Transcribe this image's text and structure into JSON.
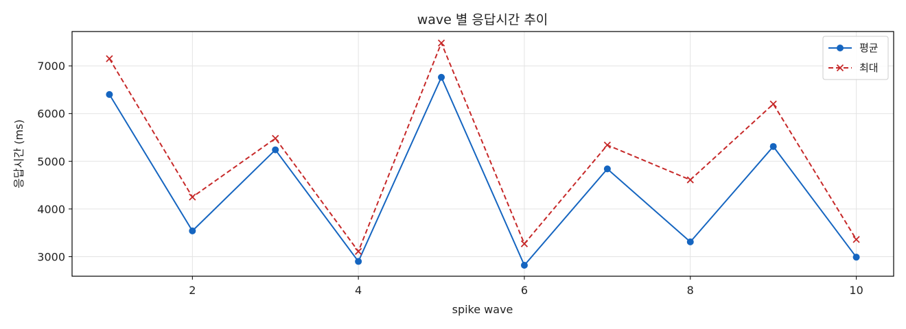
{
  "chart_data": {
    "type": "line",
    "title": "wave 별 응답시간 추이",
    "xlabel": "spike wave",
    "ylabel": "응답시간 (ms)",
    "x": [
      1,
      2,
      3,
      4,
      5,
      6,
      7,
      8,
      9,
      10
    ],
    "xlim": [
      0.55,
      10.45
    ],
    "ylim": [
      2590,
      7720
    ],
    "xticks": [
      2,
      4,
      6,
      8,
      10
    ],
    "yticks": [
      3000,
      4000,
      5000,
      6000,
      7000
    ],
    "grid": true,
    "legend_position": "top-right",
    "series": [
      {
        "name": "평균",
        "values": [
          6400,
          3540,
          5240,
          2900,
          6760,
          2820,
          4840,
          3310,
          5310,
          2990
        ],
        "color": "#1565c0",
        "marker": "circle",
        "line_style": "solid"
      },
      {
        "name": "최대",
        "values": [
          7150,
          4250,
          5480,
          3110,
          7480,
          3270,
          5340,
          4610,
          6200,
          3360
        ],
        "color": "#c62828",
        "marker": "x",
        "line_style": "dashed"
      }
    ]
  }
}
